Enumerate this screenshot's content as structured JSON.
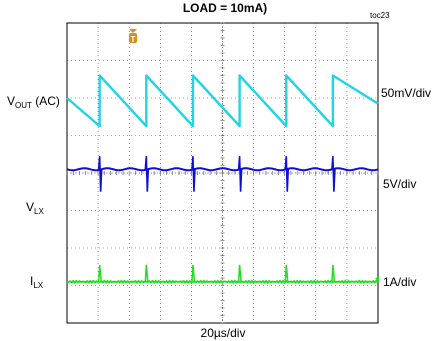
{
  "title": "LOAD = 10mA)",
  "figure_id": "toc23",
  "trigger_marker": "T",
  "time_scale": "20µs/div",
  "colors": {
    "vout": "#22d3e8",
    "vlx": "#1010d0",
    "ilx": "#22dd22",
    "trigger": "#e08a1e"
  },
  "chart_data": {
    "type": "line",
    "title": "LOAD = 10mA)",
    "xlabel": "20µs/div",
    "grid": true,
    "divisions": {
      "x": 10,
      "y": 8
    },
    "series": [
      {
        "name": "VOUT (AC)",
        "label_main": "V",
        "label_sub": "OUT",
        "label_suffix": " (AC)",
        "scale": "50mV/div",
        "shape": "sawtooth",
        "x_div": [
          0,
          1.05,
          1.05,
          2.55,
          2.55,
          4.05,
          4.05,
          5.55,
          5.55,
          7.05,
          7.05,
          8.55,
          8.55,
          10
        ],
        "y_div": [
          6.0,
          5.25,
          6.6,
          5.25,
          6.6,
          5.25,
          6.6,
          5.25,
          6.6,
          5.25,
          6.6,
          5.25,
          6.6,
          5.85
        ]
      },
      {
        "name": "VLX",
        "label_main": "V",
        "label_sub": "LX",
        "scale": "5V/div",
        "shape": "baseline with switching spikes",
        "baseline_div": 4.1,
        "spike_x_div": [
          1.05,
          2.55,
          4.05,
          5.55,
          7.05,
          8.55
        ],
        "spike_up_div": 0.35,
        "spike_down_div": 0.6
      },
      {
        "name": "ILX",
        "label_main": "I",
        "label_sub": "LX",
        "scale": "1A/div",
        "shape": "baseline with current pulses",
        "baseline_div": 1.1,
        "pulse_x_div": [
          1.05,
          2.55,
          4.05,
          5.55,
          7.05,
          8.55
        ],
        "pulse_height_div": 0.45
      }
    ]
  }
}
